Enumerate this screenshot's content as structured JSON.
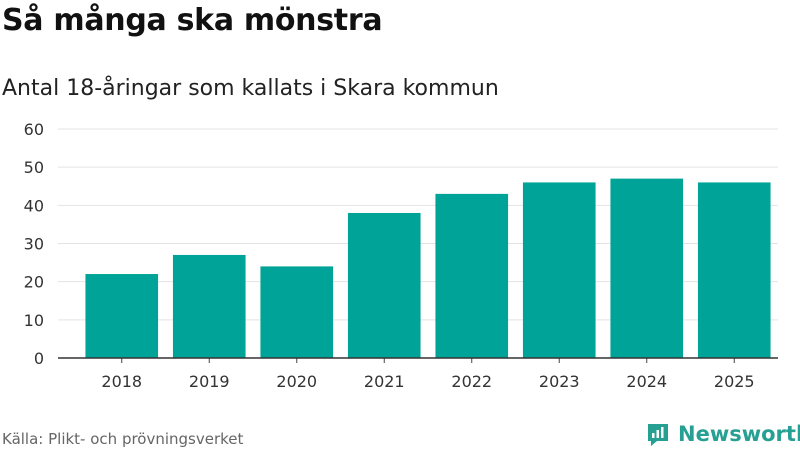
{
  "title": "Så många ska mönstra",
  "subtitle": "Antal 18-åringar som kallats i Skara kommun",
  "source": "Källa: Plikt- och prövningsverket",
  "brand": {
    "name": "Newsworthy",
    "logo_icon": "newsworthy-logo-icon",
    "color": "#26a092"
  },
  "chart_data": {
    "type": "bar",
    "title": "Så många ska mönstra",
    "subtitle": "Antal 18-åringar som kallats i Skara kommun",
    "categories": [
      "2018",
      "2019",
      "2020",
      "2021",
      "2022",
      "2023",
      "2024",
      "2025"
    ],
    "values": [
      22,
      27,
      24,
      38,
      43,
      46,
      47,
      46
    ],
    "xlabel": "",
    "ylabel": "",
    "ylim": [
      0,
      60
    ],
    "yticks": [
      0,
      10,
      20,
      30,
      40,
      50,
      60
    ],
    "grid": true,
    "bar_color": "#00a398"
  }
}
